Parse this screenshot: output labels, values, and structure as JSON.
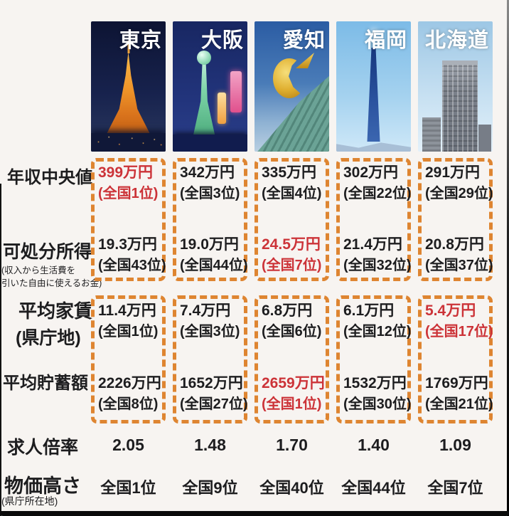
{
  "colors": {
    "highlight_red": "#cc3338",
    "dash_orange": "#de8531",
    "background": "#f7f4f1"
  },
  "row_labels": {
    "income": "年収中央値",
    "disposable": "可処分所得",
    "disposable_note1": "(収入から生活費を",
    "disposable_note2": "引いた自由に使えるお金)",
    "rent": "平均家賃",
    "rent_sub": "(県庁地)",
    "savings": "平均貯蓄額",
    "jobs": "求人倍率",
    "prices": "物価高さ",
    "prices_sub": "(県庁所在地)"
  },
  "prefectures": [
    {
      "name": "東京",
      "photo": "tokyo-tower-night",
      "income": {
        "value": "399万円",
        "rank": "(全国1位)",
        "highlight": true
      },
      "disposable": {
        "value": "19.3万円",
        "rank": "(全国43位)",
        "highlight": false
      },
      "rent": {
        "value": "11.4万円",
        "rank": "(全国1位)",
        "highlight": false
      },
      "savings": {
        "value": "2226万円",
        "rank": "(全国8位)",
        "highlight": false
      },
      "jobs": "2.05",
      "prices": "全国1位"
    },
    {
      "name": "大阪",
      "photo": "tsutenkaku-tower-night",
      "income": {
        "value": "342万円",
        "rank": "(全国3位)",
        "highlight": false
      },
      "disposable": {
        "value": "19.0万円",
        "rank": "(全国44位)",
        "highlight": false
      },
      "rent": {
        "value": "7.4万円",
        "rank": "(全国3位)",
        "highlight": false
      },
      "savings": {
        "value": "1652万円",
        "rank": "(全国27位)",
        "highlight": false
      },
      "jobs": "1.48",
      "prices": "全国9位"
    },
    {
      "name": "愛知",
      "photo": "golden-shachihoko-nagoya-castle",
      "income": {
        "value": "335万円",
        "rank": "(全国4位)",
        "highlight": false
      },
      "disposable": {
        "value": "24.5万円",
        "rank": "(全国7位)",
        "highlight": true
      },
      "rent": {
        "value": "6.8万円",
        "rank": "(全国6位)",
        "highlight": false
      },
      "savings": {
        "value": "2659万円",
        "rank": "(全国1位)",
        "highlight": true
      },
      "jobs": "1.70",
      "prices": "全国40位"
    },
    {
      "name": "福岡",
      "photo": "fukuoka-tower-day",
      "income": {
        "value": "302万円",
        "rank": "(全国22位)",
        "highlight": false
      },
      "disposable": {
        "value": "21.4万円",
        "rank": "(全国32位)",
        "highlight": false
      },
      "rent": {
        "value": "6.1万円",
        "rank": "(全国12位)",
        "highlight": false
      },
      "savings": {
        "value": "1532万円",
        "rank": "(全国30位)",
        "highlight": false
      },
      "jobs": "1.40",
      "prices": "全国44位"
    },
    {
      "name": "北海道",
      "photo": "sapporo-jr-tower-day",
      "income": {
        "value": "291万円",
        "rank": "(全国29位)",
        "highlight": false
      },
      "disposable": {
        "value": "20.8万円",
        "rank": "(全国37位)",
        "highlight": false
      },
      "rent": {
        "value": "5.4万円",
        "rank": "(全国17位)",
        "highlight": true
      },
      "savings": {
        "value": "1769万円",
        "rank": "(全国21位)",
        "highlight": false
      },
      "jobs": "1.09",
      "prices": "全国7位"
    }
  ],
  "chart_data": {
    "type": "table",
    "title": "",
    "columns": [
      "東京",
      "大阪",
      "愛知",
      "福岡",
      "北海道"
    ],
    "rows": [
      {
        "label": "年収中央値",
        "values": [
          "399万円 (全国1位)",
          "342万円 (全国3位)",
          "335万円 (全国4位)",
          "302万円 (全国22位)",
          "291万円 (全国29位)"
        ]
      },
      {
        "label": "可処分所得 (収入から生活費を引いた自由に使えるお金)",
        "values": [
          "19.3万円 (全国43位)",
          "19.0万円 (全国44位)",
          "24.5万円 (全国7位)",
          "21.4万円 (全国32位)",
          "20.8万円 (全国37位)"
        ]
      },
      {
        "label": "平均家賃 (県庁地)",
        "values": [
          "11.4万円 (全国1位)",
          "7.4万円 (全国3位)",
          "6.8万円 (全国6位)",
          "6.1万円 (全国12位)",
          "5.4万円 (全国17位)"
        ]
      },
      {
        "label": "平均貯蓄額",
        "values": [
          "2226万円 (全国8位)",
          "1652万円 (全国27位)",
          "2659万円 (全国1位)",
          "1532万円 (全国30位)",
          "1769万円 (全国21位)"
        ]
      },
      {
        "label": "求人倍率",
        "values": [
          "2.05",
          "1.48",
          "1.70",
          "1.40",
          "1.09"
        ]
      },
      {
        "label": "物価高さ (県庁所在地)",
        "values": [
          "全国1位",
          "全国9位",
          "全国40位",
          "全国44位",
          "全国7位"
        ]
      }
    ],
    "highlighted_cells": [
      {
        "row": "年収中央値",
        "column": "東京"
      },
      {
        "row": "可処分所得",
        "column": "愛知"
      },
      {
        "row": "平均家賃 (県庁地)",
        "column": "北海道"
      },
      {
        "row": "平均貯蓄額",
        "column": "愛知"
      }
    ]
  }
}
